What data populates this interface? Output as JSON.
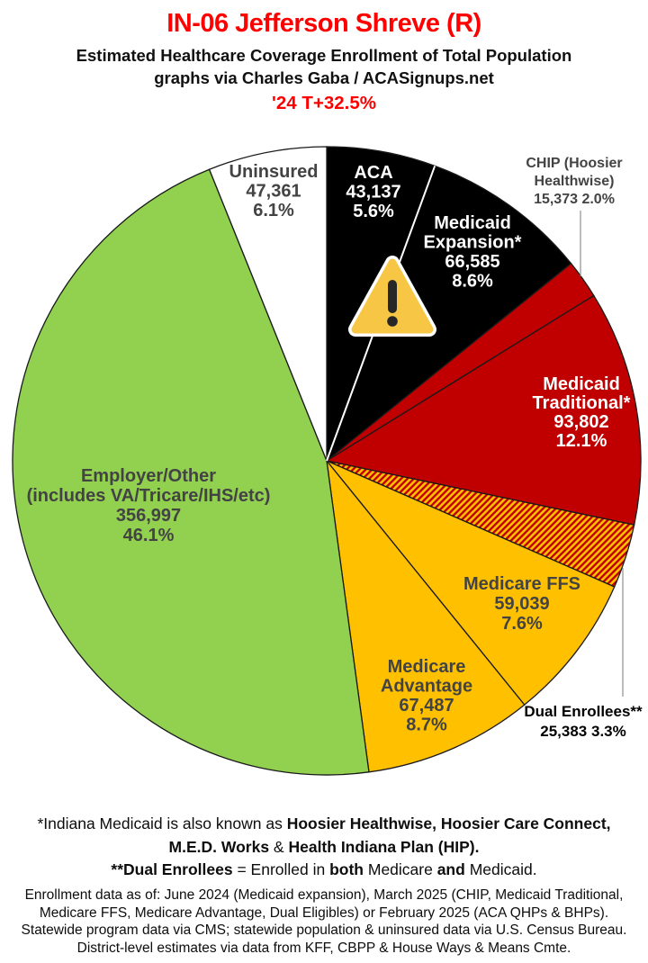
{
  "header": {
    "title": "IN-06 Jefferson Shreve (R)",
    "subtitle_line1": "Estimated Healthcare Coverage Enrollment of Total Population",
    "subtitle_line2": "graphs via Charles Gaba / ACASignups.net",
    "trend_note": "'24 T+32.5%",
    "title_color": "#FF0000",
    "trend_color": "#FF0000"
  },
  "chart_data": {
    "type": "pie",
    "title": "IN-06 Jefferson Shreve (R) — Estimated Healthcare Coverage Enrollment of Total Population",
    "units": "people",
    "direction": "clockwise",
    "start_angle_deg_from_12": 0,
    "legend_position": "none",
    "slices": [
      {
        "id": "aca",
        "label": "ACA",
        "value": 43137,
        "pct": 5.6,
        "color": "#000000",
        "text_color": "#FFFFFF",
        "display_lines": [
          "ACA",
          "43,137",
          "5.6%"
        ],
        "label_outside": false
      },
      {
        "id": "medicaid-expansion",
        "label": "Medicaid Expansion*",
        "value": 66585,
        "pct": 8.6,
        "color": "#000000",
        "text_color": "#FFFFFF",
        "display_lines": [
          "Medicaid",
          "Expansion*",
          "66,585",
          "8.6%"
        ],
        "label_outside": false
      },
      {
        "id": "chip",
        "label": "CHIP (Hoosier Healthwise)",
        "value": 15373,
        "pct": 2.0,
        "color": "#C00000",
        "text_color": "#434343",
        "display_lines": [
          "CHIP (Hoosier",
          "Healthwise)",
          "15,373 2.0%"
        ],
        "label_outside": true
      },
      {
        "id": "medicaid-traditional",
        "label": "Medicaid Traditional*",
        "value": 93802,
        "pct": 12.1,
        "color": "#C00000",
        "text_color": "#FFFFFF",
        "display_lines": [
          "Medicaid",
          "Traditional*",
          "93,802",
          "12.1%"
        ],
        "label_outside": false
      },
      {
        "id": "dual-enrollees",
        "label": "Dual Enrollees**",
        "value": 25383,
        "pct": 3.3,
        "color": "hatch:#C00000/#FFC000",
        "text_color": "#000000",
        "display_lines": [
          "Dual Enrollees**",
          "25,383 3.3%"
        ],
        "label_outside": true
      },
      {
        "id": "medicare-ffs",
        "label": "Medicare FFS",
        "value": 59039,
        "pct": 7.6,
        "color": "#FFC000",
        "text_color": "#434343",
        "display_lines": [
          "Medicare FFS",
          "59,039",
          "7.6%"
        ],
        "label_outside": false
      },
      {
        "id": "medicare-advantage",
        "label": "Medicare Advantage",
        "value": 67487,
        "pct": 8.7,
        "color": "#FFC000",
        "text_color": "#434343",
        "display_lines": [
          "Medicare",
          "Advantage",
          "67,487",
          "8.7%"
        ],
        "label_outside": false
      },
      {
        "id": "employer-other",
        "label": "Employer/Other (includes VA/Tricare/IHS/etc)",
        "value": 356997,
        "pct": 46.1,
        "color": "#92D050",
        "text_color": "#434343",
        "display_lines": [
          "Employer/Other",
          "(includes VA/Tricare/IHS/etc)",
          "356,997",
          "46.1%"
        ],
        "label_outside": false
      },
      {
        "id": "uninsured",
        "label": "Uninsured",
        "value": 47361,
        "pct": 6.1,
        "color": "#FFFFFF",
        "text_color": "#434343",
        "display_lines": [
          "Uninsured",
          "47,361",
          "6.1%"
        ],
        "label_outside": false
      }
    ],
    "separator_note": "white divider line between ACA and Medicaid Expansion slices",
    "annotation_icon": "warning-triangle",
    "colors": {
      "black_slice": "#000000",
      "red_slice": "#C00000",
      "gold_slice": "#FFC000",
      "green_slice": "#92D050",
      "white_slice": "#FFFFFF",
      "slice_outline": "#1A1A1A",
      "inside_dark_text": "#434343",
      "warning_triangle_fill": "#F7C645",
      "warning_triangle_mark": "#272727"
    }
  },
  "footnote_bold_mixed": {
    "lines": [
      [
        {
          "t": "*Indiana Medicaid is also known as ",
          "b": false
        },
        {
          "t": "Hoosier Healthwise, Hoosier Care Connect,",
          "b": true
        }
      ],
      [
        {
          "t": "M.E.D. Works",
          "b": true
        },
        {
          "t": " & ",
          "b": false
        },
        {
          "t": "Health Indiana Plan (HIP).",
          "b": true
        }
      ],
      [
        {
          "t": "**Dual Enrollees",
          "b": true
        },
        {
          "t": " = Enrolled in ",
          "b": false
        },
        {
          "t": "both",
          "b": true
        },
        {
          "t": " Medicare ",
          "b": false
        },
        {
          "t": "and",
          "b": true
        },
        {
          "t": " Medicaid.",
          "b": false
        }
      ]
    ]
  },
  "source_note_lines": [
    "Enrollment data as of: June 2024 (Medicaid expansion), March 2025 (CHIP, Medicaid Traditional,",
    "Medicare FFS, Medicare Advantage, Dual Eligibles) or February 2025 (ACA QHPs & BHPs).",
    "Statewide program data via CMS; statewide population & uninsured data via U.S. Census Bureau.",
    "District-level estimates via data from KFF, CBPP & House Ways & Means Cmte."
  ]
}
